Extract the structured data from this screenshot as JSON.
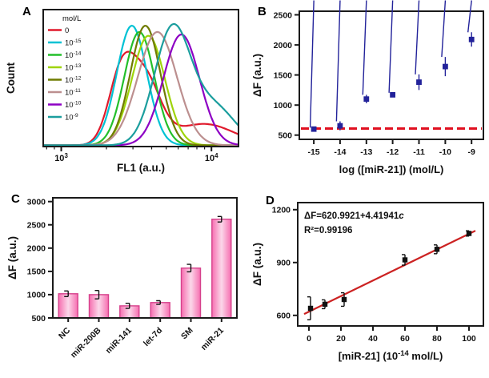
{
  "figure": {
    "background": "#ffffff"
  },
  "panels": [
    {
      "label": "A"
    },
    {
      "label": "B"
    },
    {
      "label": "C"
    },
    {
      "label": "D"
    }
  ],
  "chart_data": [
    {
      "id": "A",
      "type": "line",
      "xlabel": "FL1 (a.u.)",
      "ylabel": "Count",
      "x_scale": "log",
      "xlim": [
        2.88,
        4.18
      ],
      "x_ticks": [
        {
          "base": "10",
          "exp": "3",
          "log": 3
        },
        {
          "base": "10",
          "exp": "4",
          "log": 4
        }
      ],
      "legend_title": "mol/L",
      "series": [
        {
          "label": {
            "base": "0",
            "exp": ""
          },
          "color": "#e01a2c",
          "peaks": [
            [
              3.4,
              0.085,
              0.55
            ],
            [
              3.56,
              0.1,
              0.5
            ],
            [
              3.95,
              0.2,
              0.17
            ]
          ]
        },
        {
          "label": {
            "base": "10",
            "exp": "-15"
          },
          "color": "#00c2d4",
          "peaks": [
            [
              3.47,
              0.1,
              0.95
            ]
          ]
        },
        {
          "label": {
            "base": "10",
            "exp": "-14"
          },
          "color": "#23bf2a",
          "peaks": [
            [
              3.52,
              0.1,
              0.9
            ]
          ]
        },
        {
          "label": {
            "base": "10",
            "exp": "-13"
          },
          "color": "#9fd40a",
          "peaks": [
            [
              3.58,
              0.11,
              0.87
            ]
          ]
        },
        {
          "label": {
            "base": "10",
            "exp": "-12"
          },
          "color": "#6f7b00",
          "peaks": [
            [
              3.56,
              0.1,
              0.95
            ]
          ]
        },
        {
          "label": {
            "base": "10",
            "exp": "-11"
          },
          "color": "#bc8f8f",
          "peaks": [
            [
              3.64,
              0.13,
              0.9
            ]
          ]
        },
        {
          "label": {
            "base": "10",
            "exp": "-10"
          },
          "color": "#8d00c4",
          "peaks": [
            [
              3.8,
              0.12,
              0.88
            ]
          ]
        },
        {
          "label": {
            "base": "10",
            "exp": "-9"
          },
          "color": "#1b9e9e",
          "peaks": [
            [
              3.74,
              0.12,
              0.92
            ],
            [
              4.02,
              0.14,
              0.3
            ]
          ]
        }
      ]
    },
    {
      "id": "B",
      "type": "scatter",
      "xlabel": "log ([miR-21]) (mol/L)",
      "ylabel": "ΔF (a.u.)",
      "xlim": [
        -15.55,
        -8.55
      ],
      "ylim": [
        430,
        2560
      ],
      "x_tick_vals": [
        -15,
        -14,
        -13,
        -12,
        -11,
        -10,
        -9
      ],
      "y_tick_vals": [
        500,
        1000,
        1500,
        2000,
        2500
      ],
      "marker_color": "#22229a",
      "baseline": {
        "y": 610,
        "color": "#e01020"
      },
      "points": [
        {
          "x": -15,
          "y": 600,
          "err": 25
        },
        {
          "x": -14,
          "y": 655,
          "err": 75
        },
        {
          "x": -13,
          "y": 1100,
          "err": 70
        },
        {
          "x": -12,
          "y": 1170,
          "err": 35
        },
        {
          "x": -11,
          "y": 1380,
          "err": 130
        },
        {
          "x": -10,
          "y": 1640,
          "err": 160
        },
        {
          "x": -9,
          "y": 2090,
          "err": 120
        }
      ]
    },
    {
      "id": "C",
      "type": "bar",
      "ylabel": "ΔF (a.u.)",
      "ylim": [
        500,
        3080
      ],
      "y_tick_vals": [
        500,
        1000,
        1500,
        2000,
        2500,
        3000
      ],
      "bar_colors": {
        "edge": "#f66eb0",
        "mid": "#fbd7e9",
        "stroke": "#d6408b"
      },
      "categories": [
        "NC",
        "miR-200B",
        "miR-141",
        "let-7d",
        "SM",
        "miR-21"
      ],
      "values": [
        1020,
        1000,
        760,
        830,
        1570,
        2620
      ],
      "errors": [
        60,
        90,
        55,
        40,
        80,
        60
      ]
    },
    {
      "id": "D",
      "type": "scatter",
      "xlabel_parts": [
        {
          "t": "[miR-21] (10"
        },
        {
          "t": "-14",
          "sup": true
        },
        {
          "t": " mol/L)"
        }
      ],
      "ylabel": "ΔF (a.u.)",
      "xlim": [
        -7,
        109
      ],
      "ylim": [
        540,
        1240
      ],
      "x_tick_vals": [
        0,
        20,
        40,
        60,
        80,
        100
      ],
      "y_tick_vals": [
        600,
        900,
        1200
      ],
      "marker_color": "#111111",
      "fit": {
        "intercept": 620.9921,
        "slope": 4.41941,
        "color": "#cc2222",
        "x_range": [
          -3,
          104
        ]
      },
      "annotation": {
        "eq_parts": [
          {
            "t": "ΔF=620.9921+4.41941"
          },
          {
            "t": "c",
            "i": true
          }
        ],
        "r2": "R²=0.99196"
      },
      "points": [
        {
          "x": 1,
          "y": 640,
          "err": 65
        },
        {
          "x": 10,
          "y": 663,
          "err": 25
        },
        {
          "x": 22,
          "y": 690,
          "err": 38
        },
        {
          "x": 60,
          "y": 915,
          "err": 30
        },
        {
          "x": 80,
          "y": 975,
          "err": 25
        },
        {
          "x": 100,
          "y": 1065,
          "err": 15
        }
      ]
    }
  ]
}
